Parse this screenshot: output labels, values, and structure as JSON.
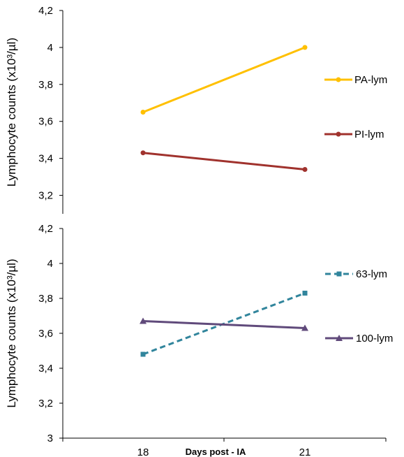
{
  "chart_data": [
    {
      "type": "line",
      "panel": "top",
      "ylabel": "Lymphocyte counts (x10³/µl)",
      "ylim": [
        3.1,
        4.2
      ],
      "yticks": [
        "3,2",
        "3,4",
        "3,6",
        "3,8",
        "4",
        "4,2"
      ],
      "x": [
        18,
        21
      ],
      "series": [
        {
          "name": "PA-lym",
          "values": [
            3.65,
            4.0
          ],
          "color": "#FFC000",
          "dash": "solid",
          "marker": "circle"
        },
        {
          "name": "PI-lym",
          "values": [
            3.43,
            3.34
          ],
          "color": "#A0322D",
          "dash": "solid",
          "marker": "circle"
        }
      ],
      "legend": "right"
    },
    {
      "type": "line",
      "panel": "bottom",
      "ylabel": "Lymphocyte counts (x10³/µl)",
      "xlabel": "Days post - IA",
      "ylim": [
        3.0,
        4.2
      ],
      "yticks": [
        "3",
        "3,2",
        "3,4",
        "3,6",
        "3,8",
        "4",
        "4,2"
      ],
      "x": [
        18,
        21
      ],
      "xticks": [
        "18",
        "21"
      ],
      "series": [
        {
          "name": "63-lym",
          "values": [
            3.48,
            3.83
          ],
          "color": "#31859C",
          "dash": "dashed",
          "marker": "square"
        },
        {
          "name": "100-lym",
          "values": [
            3.67,
            3.63
          ],
          "color": "#604A7B",
          "dash": "solid",
          "marker": "triangle"
        }
      ],
      "legend": "right"
    }
  ]
}
